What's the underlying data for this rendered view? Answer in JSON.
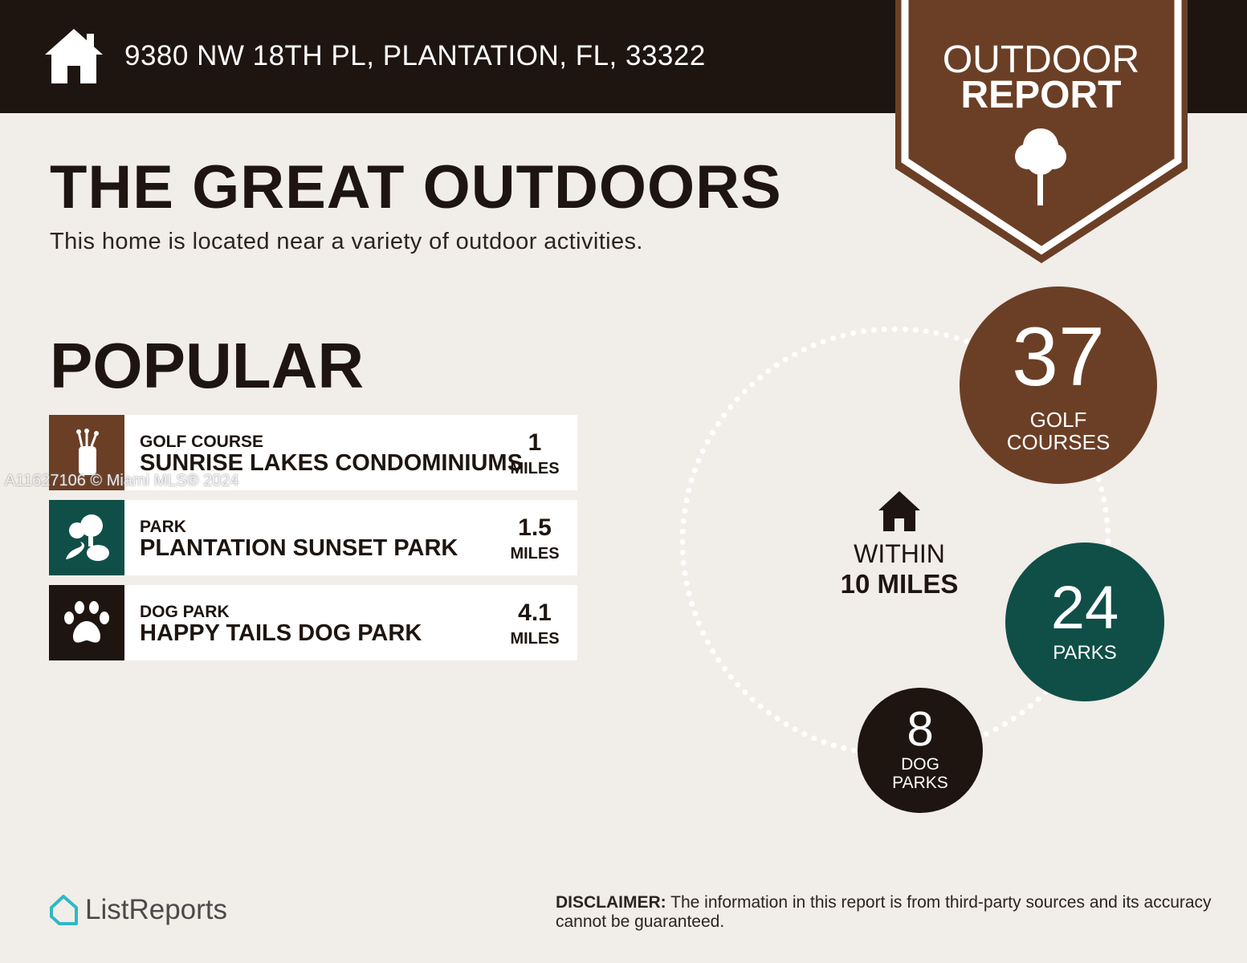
{
  "header": {
    "address": "9380 NW 18TH PL, PLANTATION, FL, 33322",
    "icon": "home-icon"
  },
  "badge": {
    "line1": "OUTDOOR",
    "line2": "REPORT",
    "icon": "tree-icon"
  },
  "main": {
    "title": "THE GREAT OUTDOORS",
    "subtitle": "This home is located near a variety of outdoor activities.",
    "popular_heading": "POPULAR"
  },
  "popular": [
    {
      "category": "GOLF COURSE",
      "name": "SUNRISE LAKES CONDOMINIUMS",
      "distance": "1",
      "unit": "MILES",
      "icon": "golf-bag-icon",
      "color": "#6b3f26"
    },
    {
      "category": "PARK",
      "name": "PLANTATION SUNSET PARK",
      "distance": "1.5",
      "unit": "MILES",
      "icon": "park-trees-icon",
      "color": "#0f4f47"
    },
    {
      "category": "DOG PARK",
      "name": "HAPPY TAILS DOG PARK",
      "distance": "4.1",
      "unit": "MILES",
      "icon": "paw-icon",
      "color": "#1e1510"
    }
  ],
  "summary": {
    "within_label": "WITHIN",
    "radius": "10 MILES",
    "counts": [
      {
        "value": "37",
        "label1": "GOLF",
        "label2": "COURSES",
        "color": "#6b3f26"
      },
      {
        "value": "24",
        "label1": "PARKS",
        "color": "#0f4f47"
      },
      {
        "value": "8",
        "label1": "DOG",
        "label2": "PARKS",
        "color": "#1e1510"
      }
    ]
  },
  "watermark": "A11627106 © Miami MLS® 2024",
  "footer": {
    "logo": "ListReports",
    "disclaimer_label": "DISCLAIMER:",
    "disclaimer_text": " The information in this report is from third-party sources and its accuracy cannot be guaranteed."
  }
}
